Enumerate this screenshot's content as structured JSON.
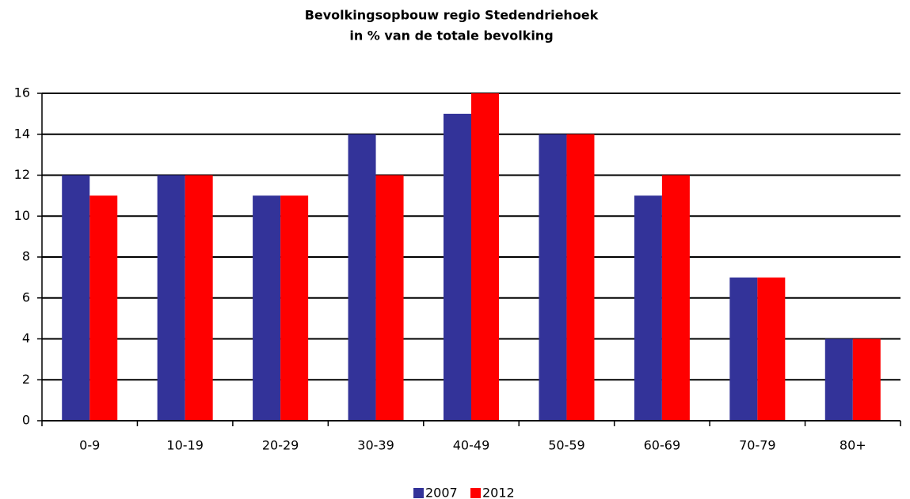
{
  "chart_data": {
    "type": "bar",
    "title": "Bevolkingsopbouw regio Stedendriehoek",
    "subtitle": "in % van de totale bevolking",
    "categories": [
      "0-9",
      "10-19",
      "20-29",
      "30-39",
      "40-49",
      "50-59",
      "60-69",
      "70-79",
      "80+"
    ],
    "series": [
      {
        "name": "2007",
        "color": "#333399",
        "values": [
          12,
          12,
          11,
          14,
          15,
          14,
          11,
          7,
          4
        ]
      },
      {
        "name": "2012",
        "color": "#ff0000",
        "values": [
          11,
          12,
          11,
          12,
          16,
          14,
          12,
          7,
          4
        ]
      }
    ],
    "ylim": [
      0,
      16
    ],
    "yticks": [
      0,
      2,
      4,
      6,
      8,
      10,
      12,
      14,
      16
    ],
    "grid": true,
    "legend": "bottom"
  }
}
